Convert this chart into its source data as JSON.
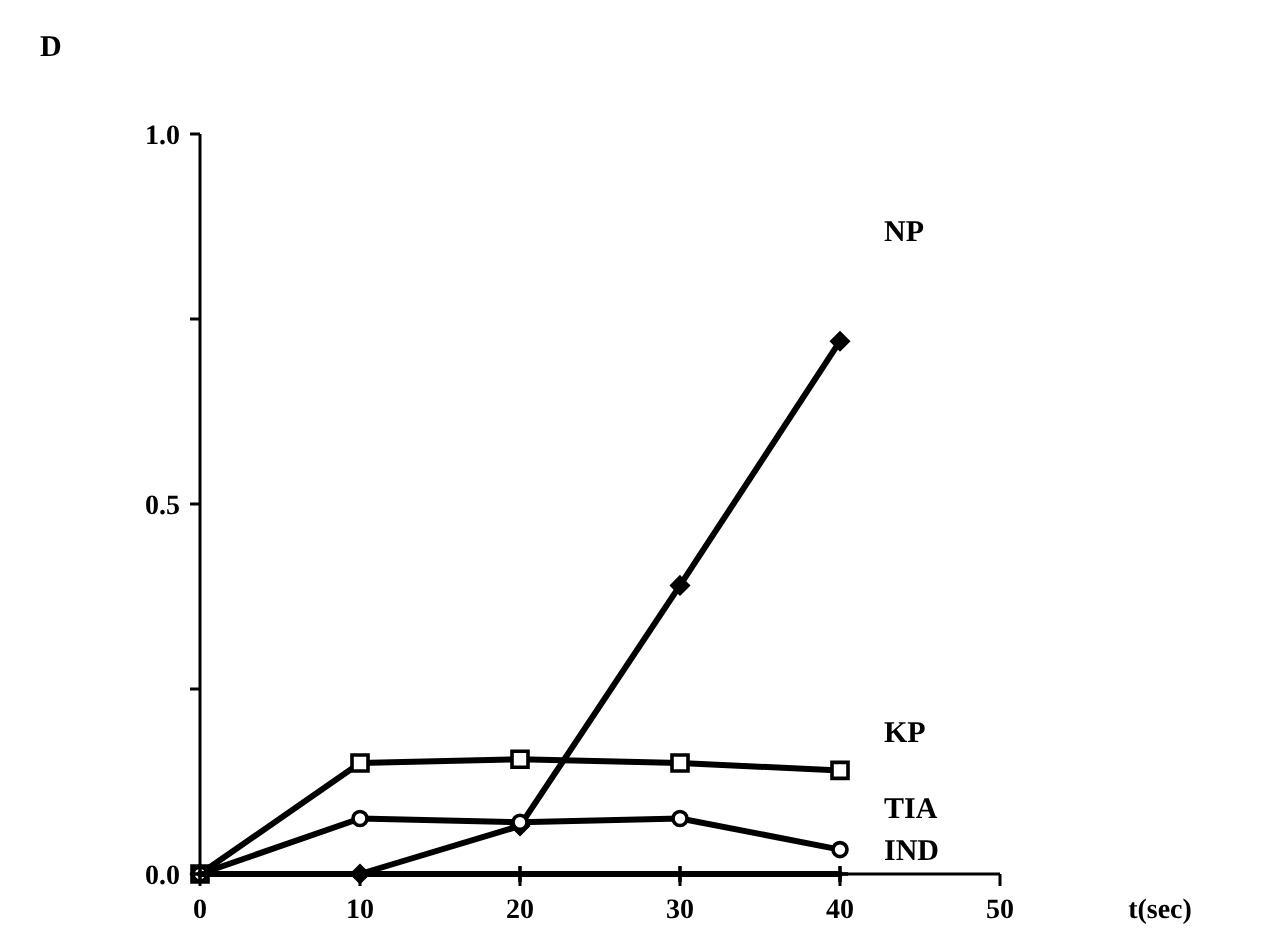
{
  "chart_data": {
    "type": "line",
    "title": "D",
    "xlabel": "t(sec)",
    "x": [
      0,
      10,
      20,
      30,
      40
    ],
    "series": [
      {
        "name": "NP",
        "color": "#000000",
        "marker": "diamond",
        "values": [
          0,
          0,
          0.065,
          0.39,
          0.72
        ]
      },
      {
        "name": "KP",
        "color": "#000000",
        "marker": "square",
        "values": [
          0,
          0.15,
          0.155,
          0.15,
          0.14
        ]
      },
      {
        "name": "TIA",
        "color": "#000000",
        "marker": "circle",
        "values": [
          0,
          0.075,
          0.07,
          0.075,
          0.033
        ]
      },
      {
        "name": "IND",
        "color": "#000000",
        "marker": "cross",
        "values": [
          0,
          0,
          0,
          0,
          0
        ]
      }
    ],
    "xlim": [
      0,
      50
    ],
    "xticks": [
      0,
      10,
      20,
      30,
      40,
      50
    ],
    "ylim": [
      0,
      1
    ],
    "yticks": [
      {
        "value": 0,
        "label": "0.0"
      },
      {
        "value": 0.25,
        "label": null
      },
      {
        "value": 0.5,
        "label": "0.5"
      },
      {
        "value": 0.75,
        "label": null
      },
      {
        "value": 1,
        "label": "1.0"
      }
    ],
    "grid": false,
    "line_style": "solid"
  }
}
